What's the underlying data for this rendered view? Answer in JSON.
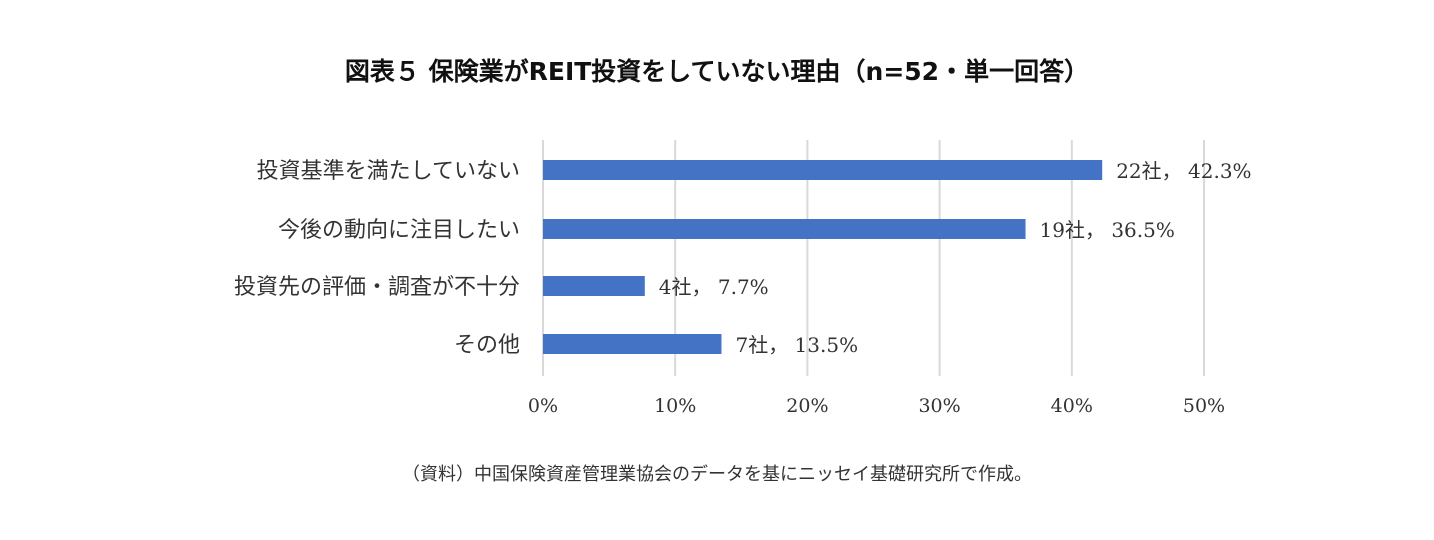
{
  "chart_data": {
    "type": "bar",
    "orientation": "horizontal",
    "title": "図表５ 保険業がREIT投資をしていない理由（n=52・単一回答）",
    "categories": [
      "投資基準を満たしていない",
      "今後の動向に注目したい",
      "投資先の評価・調査が不十分",
      "その他"
    ],
    "values": [
      42.3,
      36.5,
      7.7,
      13.5
    ],
    "data_labels": [
      "22社， 42.3%",
      "19社， 36.5%",
      "4社， 7.7%",
      "7社， 13.5%"
    ],
    "xlim": [
      0,
      50
    ],
    "xticks": [
      "0%",
      "10%",
      "20%",
      "30%",
      "40%",
      "50%"
    ],
    "grid": true,
    "bar_color": "#4472C4",
    "grid_color": "#D9D9D9"
  },
  "source": "（資料）中国保険資産管理業協会のデータを基にニッセイ基礎研究所で作成。"
}
